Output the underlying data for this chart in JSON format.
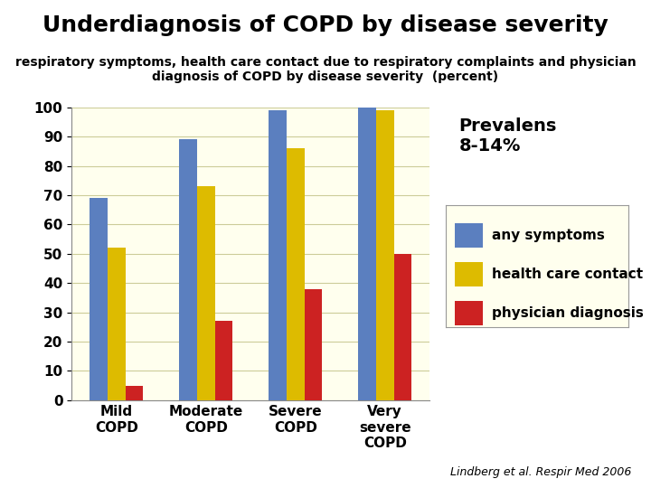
{
  "title": "Underdiagnosis of COPD by disease severity",
  "subtitle": "respiratory symptoms, health care contact due to respiratory complaints and physician\ndiagnosis of COPD by disease severity  (percent)",
  "categories": [
    "Mild\nCOPD",
    "Moderate\nCOPD",
    "Severe\nCOPD",
    "Very\nsevere\nCOPD"
  ],
  "series": {
    "any symptoms": [
      69,
      89,
      99,
      100
    ],
    "health care contact": [
      52,
      73,
      86,
      99
    ],
    "physician diagnosis": [
      5,
      27,
      38,
      50
    ]
  },
  "colors": {
    "any symptoms": "#5B7FBF",
    "health care contact": "#DDBB00",
    "physician diagnosis": "#CC2222"
  },
  "ylim": [
    0,
    100
  ],
  "yticks": [
    0,
    10,
    20,
    30,
    40,
    50,
    60,
    70,
    80,
    90,
    100
  ],
  "prevalens_text": "Prevalens\n8-14%",
  "citation": "Lindberg et al. Respir Med 2006",
  "background_color": "#FFFFFF",
  "plot_bg_color": "#FFFFEE",
  "title_fontsize": 18,
  "subtitle_fontsize": 10,
  "legend_fontsize": 11,
  "tick_fontsize": 11,
  "category_fontsize": 11,
  "prevalens_fontsize": 14,
  "citation_fontsize": 9,
  "bar_width": 0.2
}
